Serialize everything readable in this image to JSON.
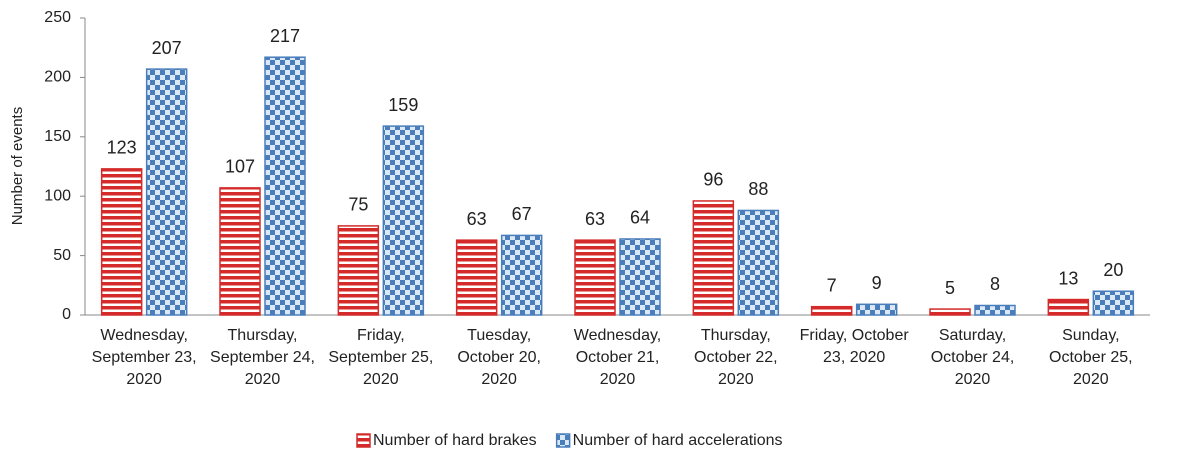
{
  "chart_data": {
    "type": "bar",
    "y_label": "Number of events",
    "categories": [
      "Wednesday, September 23, 2020",
      "Thursday, September 24, 2020",
      "Friday, September 25, 2020",
      "Tuesday, October 20, 2020",
      "Wednesday, October 21, 2020",
      "Thursday, October 22, 2020",
      "Friday, October 23, 2020",
      "Saturday, October 24, 2020",
      "Sunday, October 25, 2020"
    ],
    "series": [
      {
        "name": "Number of hard brakes",
        "color": "#d42a2a",
        "pattern": "stripes",
        "values": [
          123,
          107,
          75,
          63,
          63,
          96,
          7,
          5,
          13
        ]
      },
      {
        "name": "Number of hard accelerations",
        "color": "#4a7ebb",
        "pattern": "checker",
        "values": [
          207,
          217,
          159,
          67,
          64,
          88,
          9,
          8,
          20
        ]
      }
    ],
    "ylim": [
      0,
      250
    ],
    "yticks": [
      0,
      50,
      100,
      150,
      200,
      250
    ],
    "legend": "bottom"
  }
}
